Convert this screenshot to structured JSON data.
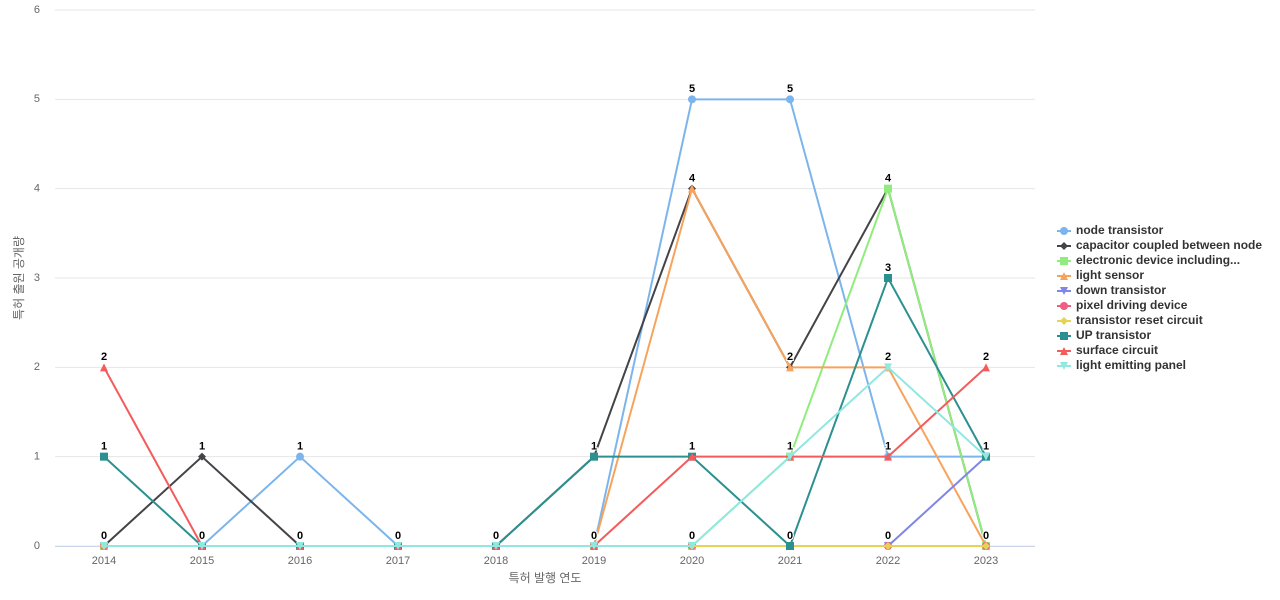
{
  "chart_data": {
    "type": "line",
    "x_label": "특허 발행 연도",
    "y_label": "특허 출원 공개량",
    "categories": [
      "2014",
      "2015",
      "2016",
      "2017",
      "2018",
      "2019",
      "2020",
      "2021",
      "2022",
      "2023"
    ],
    "ylim": [
      0,
      6
    ],
    "yticks": [
      0,
      1,
      2,
      3,
      4,
      5,
      6
    ],
    "grid": true,
    "legend": "right",
    "series": [
      {
        "name": "node transistor",
        "color": "#7cb5ec",
        "marker": "circle",
        "values": [
          0,
          0,
          1,
          0,
          0,
          0,
          5,
          5,
          1,
          1
        ]
      },
      {
        "name": "capacitor coupled between node",
        "color": "#434348",
        "marker": "diamond",
        "values": [
          0,
          1,
          0,
          0,
          0,
          1,
          4,
          2,
          4,
          0
        ]
      },
      {
        "name": "electronic device including...",
        "color": "#90ed7d",
        "marker": "square",
        "values": [
          0,
          0,
          0,
          0,
          0,
          0,
          0,
          1,
          4,
          0
        ]
      },
      {
        "name": "light sensor",
        "color": "#f7a35c",
        "marker": "triangle",
        "values": [
          0,
          0,
          0,
          0,
          0,
          0,
          4,
          2,
          2,
          0
        ]
      },
      {
        "name": "down transistor",
        "color": "#8085e9",
        "marker": "triangle-down",
        "values": [
          0,
          0,
          0,
          0,
          0,
          0,
          0,
          0,
          0,
          1
        ]
      },
      {
        "name": "pixel driving device",
        "color": "#f15c80",
        "marker": "circle",
        "values": [
          0,
          0,
          0,
          0,
          0,
          0,
          0,
          0,
          0,
          0
        ]
      },
      {
        "name": "transistor reset circuit",
        "color": "#e4d354",
        "marker": "diamond",
        "values": [
          0,
          0,
          0,
          0,
          0,
          0,
          0,
          0,
          0,
          0
        ]
      },
      {
        "name": "UP transistor",
        "color": "#2b908f",
        "marker": "square",
        "values": [
          1,
          0,
          0,
          0,
          0,
          1,
          1,
          0,
          3,
          1
        ]
      },
      {
        "name": "surface circuit",
        "color": "#f45b5b",
        "marker": "triangle",
        "values": [
          2,
          0,
          0,
          0,
          0,
          0,
          1,
          1,
          1,
          2
        ]
      },
      {
        "name": "light emitting panel",
        "color": "#91e8e1",
        "marker": "triangle-down",
        "values": [
          0,
          0,
          0,
          0,
          0,
          0,
          0,
          1,
          2,
          1
        ]
      }
    ]
  }
}
